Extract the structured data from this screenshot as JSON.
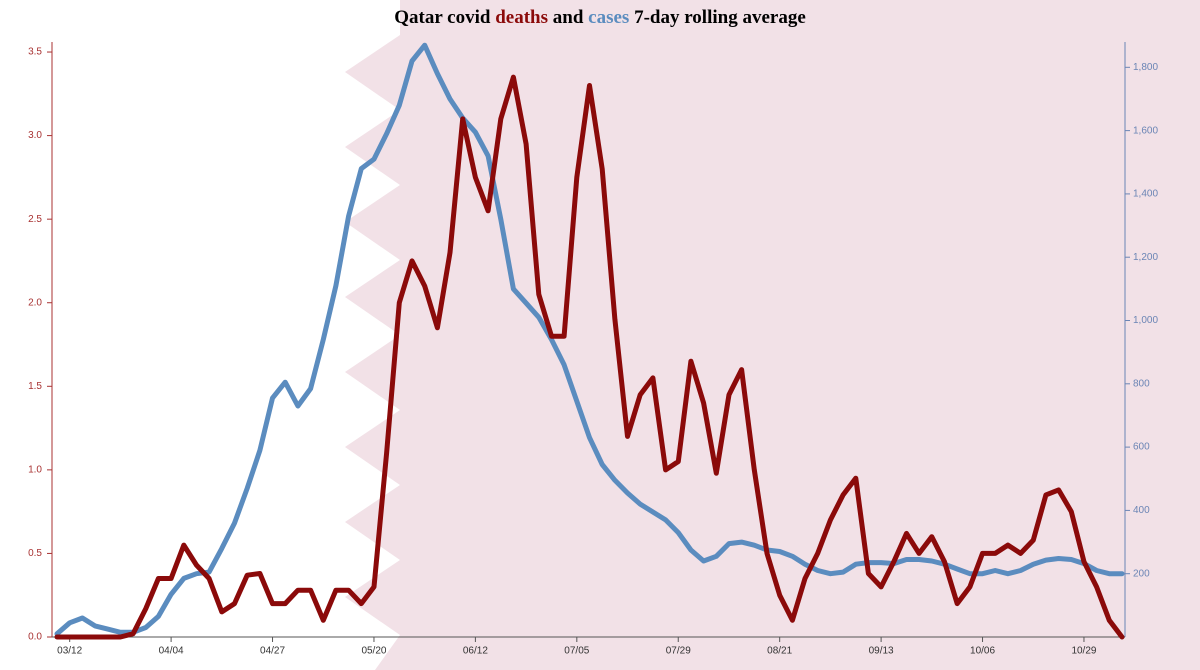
{
  "chart_data": {
    "type": "line",
    "title": [
      "Qatar covid",
      "deaths",
      "and",
      "cases",
      "7-day rolling average"
    ],
    "categories": [
      null,
      "03/12",
      null,
      null,
      null,
      null,
      null,
      null,
      null,
      "04/04",
      null,
      null,
      null,
      null,
      null,
      null,
      null,
      "04/27",
      null,
      null,
      null,
      null,
      null,
      null,
      null,
      "05/20",
      null,
      null,
      null,
      null,
      null,
      null,
      null,
      "06/12",
      null,
      null,
      null,
      null,
      null,
      null,
      null,
      "07/05",
      null,
      null,
      null,
      null,
      null,
      null,
      null,
      "07/29",
      null,
      null,
      null,
      null,
      null,
      null,
      null,
      "08/21",
      null,
      null,
      null,
      null,
      null,
      null,
      null,
      "09/13",
      null,
      null,
      null,
      null,
      null,
      null,
      null,
      "10/06",
      null,
      null,
      null,
      null,
      null,
      null,
      null,
      "10/29",
      null,
      null,
      null
    ],
    "series": [
      {
        "name": "deaths",
        "color": "#8b0a0a",
        "axis": "y",
        "values": [
          0,
          0,
          0,
          0,
          0,
          0,
          0.02,
          0.17,
          0.35,
          0.35,
          0.55,
          0.43,
          0.35,
          0.15,
          0.2,
          0.37,
          0.38,
          0.2,
          0.2,
          0.28,
          0.28,
          0.1,
          0.28,
          0.28,
          0.2,
          0.3,
          1.1,
          2.0,
          2.25,
          2.1,
          1.85,
          2.3,
          3.1,
          2.75,
          2.55,
          3.1,
          3.35,
          2.95,
          2.05,
          1.8,
          1.8,
          2.75,
          3.3,
          2.8,
          1.9,
          1.2,
          1.45,
          1.55,
          1.0,
          1.05,
          1.65,
          1.4,
          0.98,
          1.45,
          1.6,
          1.0,
          0.5,
          0.25,
          0.1,
          0.35,
          0.5,
          0.7,
          0.85,
          0.95,
          0.38,
          0.3,
          0.45,
          0.62,
          0.5,
          0.6,
          0.45,
          0.2,
          0.3,
          0.5,
          0.5,
          0.55,
          0.5,
          0.58,
          0.85,
          0.88,
          0.75,
          0.45,
          0.3,
          0.1,
          0
        ]
      },
      {
        "name": "cases",
        "color": "#5b8cbf",
        "axis": "y2",
        "values": [
          10,
          45,
          60,
          35,
          25,
          15,
          15,
          30,
          65,
          135,
          185,
          200,
          205,
          280,
          360,
          470,
          590,
          755,
          805,
          730,
          785,
          940,
          1110,
          1330,
          1480,
          1510,
          1590,
          1680,
          1820,
          1870,
          1780,
          1700,
          1640,
          1595,
          1520,
          1320,
          1100,
          1055,
          1010,
          940,
          860,
          745,
          630,
          545,
          495,
          455,
          420,
          395,
          370,
          330,
          275,
          240,
          255,
          295,
          300,
          290,
          275,
          270,
          255,
          230,
          210,
          200,
          205,
          230,
          235,
          235,
          232,
          245,
          245,
          240,
          230,
          215,
          200,
          200,
          210,
          200,
          210,
          230,
          243,
          248,
          245,
          232,
          210,
          200,
          200
        ]
      }
    ],
    "ylim": [
      0,
      3.56
    ],
    "yticks": [
      {
        "value": 0,
        "label": "0.0"
      },
      0.5,
      {
        "value": 1,
        "label": "1.0"
      },
      1.5,
      {
        "value": 2,
        "label": "2.0"
      },
      2.5,
      {
        "value": 3,
        "label": "3.0"
      },
      3.5
    ],
    "y2lim": [
      0,
      1880
    ],
    "y2ticks": [
      200,
      400,
      600,
      800,
      {
        "value": 1000,
        "label": "1,000"
      },
      {
        "value": 1200,
        "label": "1,200"
      },
      {
        "value": 1400,
        "label": "1,400"
      },
      {
        "value": 1600,
        "label": "1,600"
      },
      {
        "value": 1800,
        "label": "1,800"
      }
    ],
    "y_axis_color": "#a83232",
    "y2_axis_color": "#6b85b5"
  }
}
